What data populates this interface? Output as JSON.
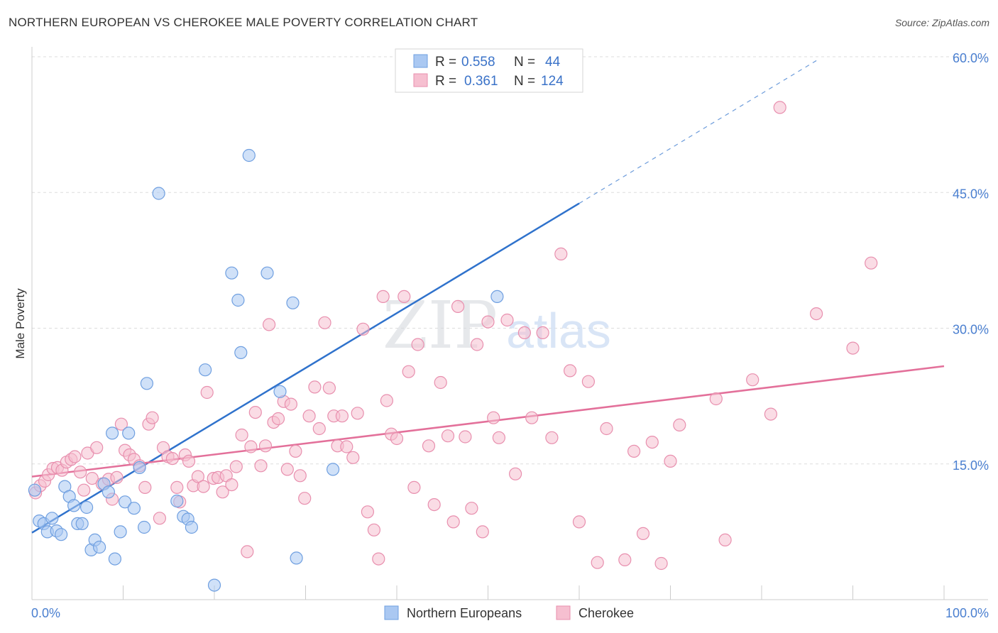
{
  "title": "NORTHERN EUROPEAN VS CHEROKEE MALE POVERTY CORRELATION CHART",
  "source": "Source: ZipAtlas.com",
  "watermark": {
    "zip": "ZIP",
    "atlas": "atlas"
  },
  "colors": {
    "blue_fill": "#aac8f2",
    "blue_stroke": "#6f9fe0",
    "blue_line": "#2f72cc",
    "pink_fill": "#f6bfd0",
    "pink_stroke": "#e88fae",
    "pink_line": "#e3709a",
    "grid": "#dddddd",
    "tick_text": "#4a7fd0"
  },
  "legend": {
    "r_label": "R =",
    "n_label": "N =",
    "rows": [
      {
        "series": "Northern Europeans",
        "r": "0.558",
        "n": "44"
      },
      {
        "series": "Cherokee",
        "r": "0.361",
        "n": "124"
      }
    ]
  },
  "chart_data": {
    "type": "scatter",
    "title": "NORTHERN EUROPEAN VS CHEROKEE MALE POVERTY CORRELATION CHART",
    "xlabel": "",
    "ylabel": "Male Poverty",
    "xlim": [
      0,
      100
    ],
    "ylim": [
      0,
      60
    ],
    "x_tick_labels": [
      "0.0%",
      "100.0%"
    ],
    "y_ticks": [
      15,
      30,
      45,
      60
    ],
    "y_tick_labels": [
      "15.0%",
      "30.0%",
      "45.0%",
      "60.0%"
    ],
    "grid": true,
    "legend_position": "top-center",
    "series": [
      {
        "name": "Northern Europeans",
        "color": "#aac8f2",
        "trend": {
          "x0": 0,
          "y0": 7.4,
          "x1": 60,
          "y1": 43.8,
          "dash_to_x": 86
        },
        "points": [
          [
            0.3,
            12.1
          ],
          [
            0.8,
            8.7
          ],
          [
            1.3,
            8.4
          ],
          [
            1.7,
            7.5
          ],
          [
            2.2,
            9.0
          ],
          [
            2.7,
            7.6
          ],
          [
            3.2,
            7.2
          ],
          [
            3.6,
            12.5
          ],
          [
            4.1,
            11.4
          ],
          [
            4.6,
            10.4
          ],
          [
            5.0,
            8.4
          ],
          [
            5.5,
            8.4
          ],
          [
            6.0,
            10.2
          ],
          [
            6.5,
            5.5
          ],
          [
            6.9,
            6.6
          ],
          [
            7.4,
            5.8
          ],
          [
            7.9,
            12.8
          ],
          [
            8.4,
            11.9
          ],
          [
            8.8,
            18.4
          ],
          [
            9.1,
            4.5
          ],
          [
            9.7,
            7.5
          ],
          [
            10.2,
            10.8
          ],
          [
            10.6,
            18.4
          ],
          [
            11.2,
            10.1
          ],
          [
            11.8,
            14.6
          ],
          [
            12.3,
            8.0
          ],
          [
            12.6,
            23.9
          ],
          [
            13.9,
            44.9
          ],
          [
            15.9,
            10.9
          ],
          [
            16.6,
            9.2
          ],
          [
            17.1,
            8.9
          ],
          [
            17.5,
            8.0
          ],
          [
            19.0,
            25.4
          ],
          [
            20.0,
            1.6
          ],
          [
            21.9,
            36.1
          ],
          [
            22.6,
            33.1
          ],
          [
            22.9,
            27.3
          ],
          [
            23.8,
            49.1
          ],
          [
            25.8,
            36.1
          ],
          [
            27.2,
            23.0
          ],
          [
            28.6,
            32.8
          ],
          [
            29.0,
            4.6
          ],
          [
            33.0,
            14.4
          ],
          [
            51.0,
            33.5
          ]
        ]
      },
      {
        "name": "Cherokee",
        "color": "#f6bfd0",
        "trend": {
          "x0": 0,
          "y0": 13.6,
          "x1": 100,
          "y1": 25.8
        },
        "points": [
          [
            0.4,
            11.8
          ],
          [
            0.9,
            12.6
          ],
          [
            1.4,
            13.1
          ],
          [
            1.8,
            13.8
          ],
          [
            2.3,
            14.5
          ],
          [
            2.8,
            14.6
          ],
          [
            3.3,
            14.3
          ],
          [
            3.8,
            15.2
          ],
          [
            4.3,
            15.5
          ],
          [
            4.7,
            15.8
          ],
          [
            5.3,
            14.1
          ],
          [
            5.7,
            12.1
          ],
          [
            6.1,
            16.2
          ],
          [
            6.6,
            13.4
          ],
          [
            7.1,
            16.8
          ],
          [
            7.7,
            12.8
          ],
          [
            8.4,
            13.3
          ],
          [
            8.8,
            11.1
          ],
          [
            9.3,
            13.5
          ],
          [
            9.8,
            19.4
          ],
          [
            10.2,
            16.5
          ],
          [
            10.7,
            16.0
          ],
          [
            11.2,
            15.5
          ],
          [
            11.8,
            14.8
          ],
          [
            12.4,
            12.4
          ],
          [
            12.8,
            19.4
          ],
          [
            13.2,
            20.1
          ],
          [
            14.0,
            9.0
          ],
          [
            14.4,
            16.8
          ],
          [
            14.9,
            15.8
          ],
          [
            15.4,
            15.6
          ],
          [
            15.9,
            12.4
          ],
          [
            16.2,
            10.8
          ],
          [
            16.8,
            16.0
          ],
          [
            17.2,
            15.3
          ],
          [
            17.7,
            12.6
          ],
          [
            18.2,
            13.6
          ],
          [
            18.8,
            12.5
          ],
          [
            19.2,
            22.9
          ],
          [
            19.9,
            13.4
          ],
          [
            20.4,
            13.5
          ],
          [
            20.9,
            11.9
          ],
          [
            21.3,
            13.7
          ],
          [
            21.9,
            12.7
          ],
          [
            22.4,
            14.7
          ],
          [
            23.0,
            18.2
          ],
          [
            23.6,
            5.3
          ],
          [
            24.0,
            16.9
          ],
          [
            24.5,
            20.7
          ],
          [
            25.1,
            14.8
          ],
          [
            25.6,
            17.0
          ],
          [
            26.0,
            30.4
          ],
          [
            26.5,
            19.6
          ],
          [
            27.0,
            20.0
          ],
          [
            27.6,
            21.9
          ],
          [
            28.0,
            14.4
          ],
          [
            28.4,
            21.6
          ],
          [
            28.9,
            16.4
          ],
          [
            29.4,
            13.7
          ],
          [
            29.9,
            11.2
          ],
          [
            30.4,
            20.3
          ],
          [
            31.0,
            23.5
          ],
          [
            31.5,
            18.9
          ],
          [
            32.1,
            30.6
          ],
          [
            32.6,
            23.4
          ],
          [
            33.1,
            20.3
          ],
          [
            33.5,
            17.0
          ],
          [
            34.0,
            20.3
          ],
          [
            34.5,
            16.9
          ],
          [
            35.2,
            15.7
          ],
          [
            35.7,
            20.6
          ],
          [
            36.3,
            29.9
          ],
          [
            36.8,
            9.7
          ],
          [
            37.5,
            7.7
          ],
          [
            38.0,
            4.5
          ],
          [
            38.5,
            33.5
          ],
          [
            38.9,
            22.0
          ],
          [
            39.4,
            18.3
          ],
          [
            40.0,
            17.8
          ],
          [
            40.8,
            33.5
          ],
          [
            41.3,
            25.2
          ],
          [
            41.9,
            12.4
          ],
          [
            42.3,
            28.2
          ],
          [
            43.5,
            17.0
          ],
          [
            44.1,
            10.5
          ],
          [
            44.8,
            24.0
          ],
          [
            45.6,
            18.1
          ],
          [
            46.2,
            8.6
          ],
          [
            46.7,
            32.4
          ],
          [
            47.5,
            18.0
          ],
          [
            48.2,
            10.1
          ],
          [
            48.8,
            28.2
          ],
          [
            49.4,
            7.5
          ],
          [
            50.0,
            30.7
          ],
          [
            50.6,
            20.1
          ],
          [
            51.2,
            17.9
          ],
          [
            52.1,
            30.9
          ],
          [
            53.0,
            13.9
          ],
          [
            54.0,
            29.5
          ],
          [
            54.8,
            20.1
          ],
          [
            56.0,
            29.5
          ],
          [
            57.0,
            17.9
          ],
          [
            58.0,
            38.2
          ],
          [
            59.0,
            25.3
          ],
          [
            60.0,
            8.6
          ],
          [
            61.0,
            24.1
          ],
          [
            62.0,
            4.1
          ],
          [
            63.0,
            18.9
          ],
          [
            65.0,
            4.4
          ],
          [
            66.0,
            16.4
          ],
          [
            67.0,
            7.3
          ],
          [
            68.0,
            17.4
          ],
          [
            69.0,
            4.0
          ],
          [
            70.0,
            15.3
          ],
          [
            71.0,
            19.3
          ],
          [
            75.0,
            22.2
          ],
          [
            76.0,
            6.6
          ],
          [
            79.0,
            24.3
          ],
          [
            81.0,
            20.5
          ],
          [
            82.0,
            54.4
          ],
          [
            86.0,
            31.6
          ],
          [
            90.0,
            27.8
          ],
          [
            92.0,
            37.2
          ]
        ]
      }
    ]
  }
}
